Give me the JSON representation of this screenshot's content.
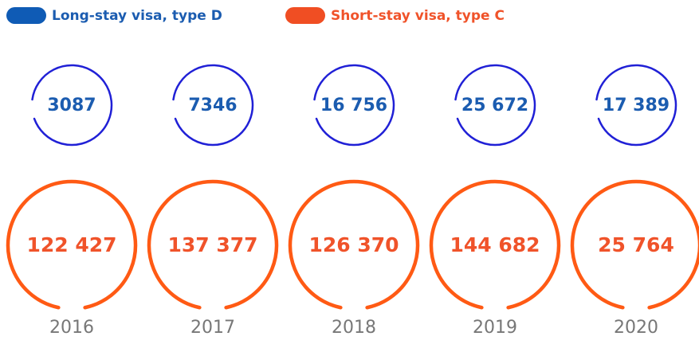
{
  "chart_data": {
    "type": "ring",
    "categories": [
      "2016",
      "2017",
      "2018",
      "2019",
      "2020"
    ],
    "series": [
      {
        "name": "Long-stay visa, type D",
        "color": "#2020d6",
        "values": [
          3087,
          7346,
          16756,
          25672,
          17389
        ],
        "value_labels": [
          "3087",
          "7346",
          "16 756",
          "25 672",
          "17 389"
        ]
      },
      {
        "name": "Short-stay visa, type C",
        "color": "#ff5a14",
        "values": [
          122427,
          137377,
          126370,
          144682,
          25764
        ],
        "value_labels": [
          "122 427",
          "137 377",
          "126 370",
          "144 682",
          "25 764"
        ]
      }
    ]
  }
}
